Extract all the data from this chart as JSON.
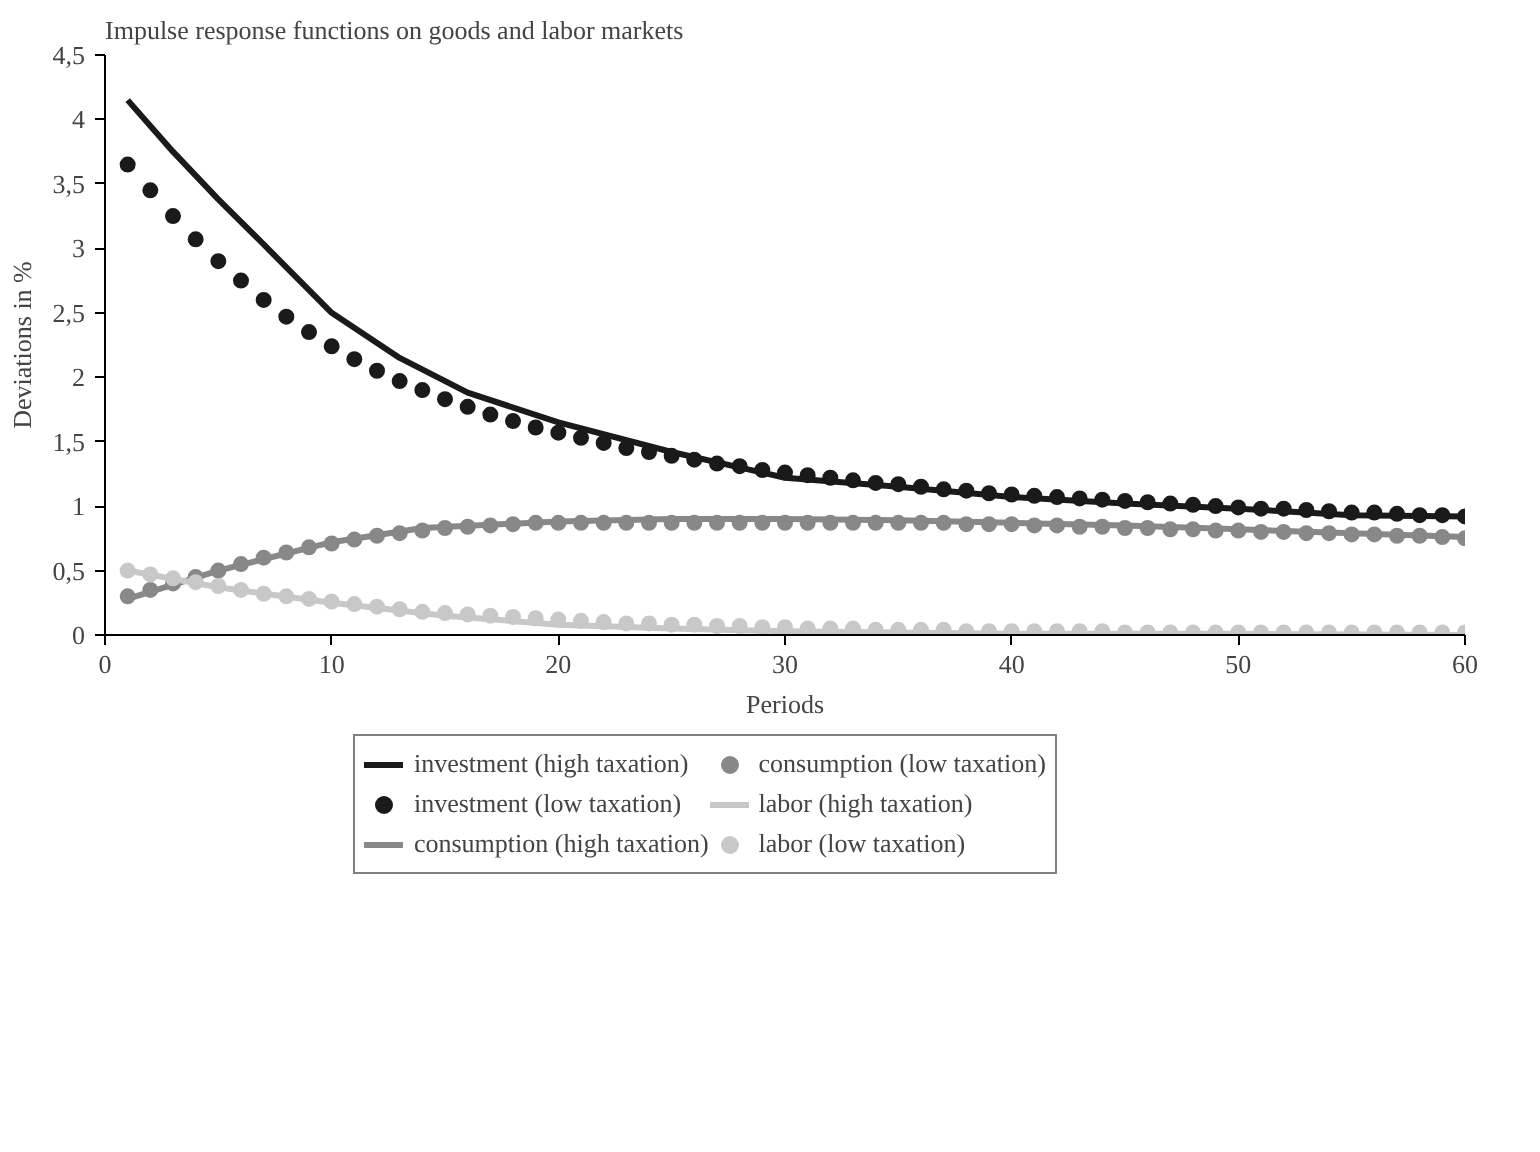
{
  "chart_data": {
    "type": "line",
    "title": "Impulse response functions on goods and labor markets",
    "xlabel": "Periods",
    "ylabel": "Deviations in %",
    "xlim": [
      0,
      60
    ],
    "xticks": [
      0,
      10,
      20,
      30,
      40,
      50,
      60
    ],
    "ylim": [
      0,
      4.5
    ],
    "yticks": [
      0,
      {
        "value": 0.5,
        "label": "0,5"
      },
      1,
      {
        "value": 1.5,
        "label": "1,5"
      },
      2,
      {
        "value": 2.5,
        "label": "2,5"
      },
      3,
      {
        "value": 3.5,
        "label": "3,5"
      },
      4,
      {
        "value": 4.5,
        "label": "4,5"
      }
    ],
    "grid": false,
    "legend": "bottom",
    "series": [
      {
        "name": "investment (high taxation)",
        "color": "#1a1a1a",
        "x": [
          1,
          3,
          5,
          7,
          10,
          13,
          16,
          20,
          25,
          30,
          35,
          40,
          45,
          50,
          55,
          60
        ],
        "values": [
          4.15,
          3.75,
          3.38,
          3.03,
          2.5,
          2.15,
          1.88,
          1.65,
          1.42,
          1.22,
          1.15,
          1.07,
          1.02,
          0.98,
          0.93,
          0.92
        ]
      },
      {
        "name": "investment (low taxation)",
        "type": "scatter",
        "color": "#1a1a1a",
        "x": [
          1,
          2,
          3,
          4,
          5,
          6,
          7,
          8,
          9,
          10,
          11,
          12,
          13,
          14,
          15,
          16,
          17,
          18,
          19,
          20,
          21,
          22,
          23,
          24,
          25,
          26,
          27,
          28,
          29,
          30,
          31,
          32,
          33,
          34,
          35,
          36,
          37,
          38,
          39,
          40,
          41,
          42,
          43,
          44,
          45,
          46,
          47,
          48,
          49,
          50,
          51,
          52,
          53,
          54,
          55,
          56,
          57,
          58,
          59,
          60
        ],
        "values": [
          3.65,
          3.45,
          3.25,
          3.07,
          2.9,
          2.75,
          2.6,
          2.47,
          2.35,
          2.24,
          2.14,
          2.05,
          1.97,
          1.9,
          1.83,
          1.77,
          1.71,
          1.66,
          1.61,
          1.57,
          1.53,
          1.49,
          1.45,
          1.42,
          1.39,
          1.36,
          1.33,
          1.31,
          1.28,
          1.26,
          1.24,
          1.22,
          1.2,
          1.18,
          1.17,
          1.15,
          1.13,
          1.12,
          1.1,
          1.09,
          1.08,
          1.07,
          1.06,
          1.05,
          1.04,
          1.03,
          1.02,
          1.01,
          1.0,
          0.99,
          0.98,
          0.98,
          0.97,
          0.96,
          0.95,
          0.95,
          0.94,
          0.93,
          0.93,
          0.92
        ]
      },
      {
        "name": "consumption (high taxation)",
        "color": "#888888",
        "x": [
          1,
          5,
          10,
          14,
          20,
          25,
          30,
          35,
          40,
          45,
          50,
          55,
          60
        ],
        "values": [
          0.28,
          0.5,
          0.72,
          0.83,
          0.88,
          0.9,
          0.9,
          0.89,
          0.87,
          0.85,
          0.82,
          0.79,
          0.76
        ]
      },
      {
        "name": "consumption (low taxation)",
        "type": "scatter",
        "color": "#888888",
        "x": [
          1,
          2,
          3,
          4,
          5,
          6,
          7,
          8,
          9,
          10,
          11,
          12,
          13,
          14,
          15,
          16,
          17,
          18,
          19,
          20,
          21,
          22,
          23,
          24,
          25,
          26,
          27,
          28,
          29,
          30,
          31,
          32,
          33,
          34,
          35,
          36,
          37,
          38,
          39,
          40,
          41,
          42,
          43,
          44,
          45,
          46,
          47,
          48,
          49,
          50,
          51,
          52,
          53,
          54,
          55,
          56,
          57,
          58,
          59,
          60
        ],
        "values": [
          0.3,
          0.35,
          0.4,
          0.45,
          0.5,
          0.55,
          0.6,
          0.64,
          0.68,
          0.71,
          0.74,
          0.77,
          0.79,
          0.81,
          0.83,
          0.84,
          0.85,
          0.86,
          0.87,
          0.87,
          0.87,
          0.87,
          0.87,
          0.87,
          0.87,
          0.87,
          0.87,
          0.87,
          0.87,
          0.87,
          0.87,
          0.87,
          0.87,
          0.87,
          0.87,
          0.87,
          0.87,
          0.86,
          0.86,
          0.86,
          0.85,
          0.85,
          0.84,
          0.84,
          0.83,
          0.83,
          0.82,
          0.82,
          0.81,
          0.81,
          0.8,
          0.8,
          0.79,
          0.79,
          0.78,
          0.78,
          0.77,
          0.77,
          0.76,
          0.75
        ]
      },
      {
        "name": "labor (high taxation)",
        "color": "#c8c8c8",
        "x": [
          1,
          5,
          10,
          15,
          20,
          25,
          30,
          35,
          40,
          50,
          60
        ],
        "values": [
          0.5,
          0.37,
          0.25,
          0.15,
          0.08,
          0.05,
          0.03,
          0.02,
          0.01,
          0.01,
          0.0
        ]
      },
      {
        "name": "labor (low taxation)",
        "type": "scatter",
        "color": "#c8c8c8",
        "x": [
          1,
          2,
          3,
          4,
          5,
          6,
          7,
          8,
          9,
          10,
          11,
          12,
          13,
          14,
          15,
          16,
          17,
          18,
          19,
          20,
          21,
          22,
          23,
          24,
          25,
          26,
          27,
          28,
          29,
          30,
          31,
          32,
          33,
          34,
          35,
          36,
          37,
          38,
          39,
          40,
          41,
          42,
          43,
          44,
          45,
          46,
          47,
          48,
          49,
          50,
          51,
          52,
          53,
          54,
          55,
          56,
          57,
          58,
          59,
          60
        ],
        "values": [
          0.5,
          0.47,
          0.44,
          0.41,
          0.38,
          0.35,
          0.32,
          0.3,
          0.28,
          0.26,
          0.24,
          0.22,
          0.2,
          0.18,
          0.17,
          0.16,
          0.15,
          0.14,
          0.13,
          0.12,
          0.11,
          0.1,
          0.09,
          0.09,
          0.08,
          0.08,
          0.07,
          0.07,
          0.06,
          0.06,
          0.05,
          0.05,
          0.05,
          0.04,
          0.04,
          0.04,
          0.04,
          0.03,
          0.03,
          0.03,
          0.03,
          0.03,
          0.03,
          0.03,
          0.02,
          0.02,
          0.02,
          0.02,
          0.02,
          0.02,
          0.02,
          0.02,
          0.02,
          0.02,
          0.02,
          0.02,
          0.02,
          0.02,
          0.02,
          0.02
        ]
      }
    ]
  }
}
